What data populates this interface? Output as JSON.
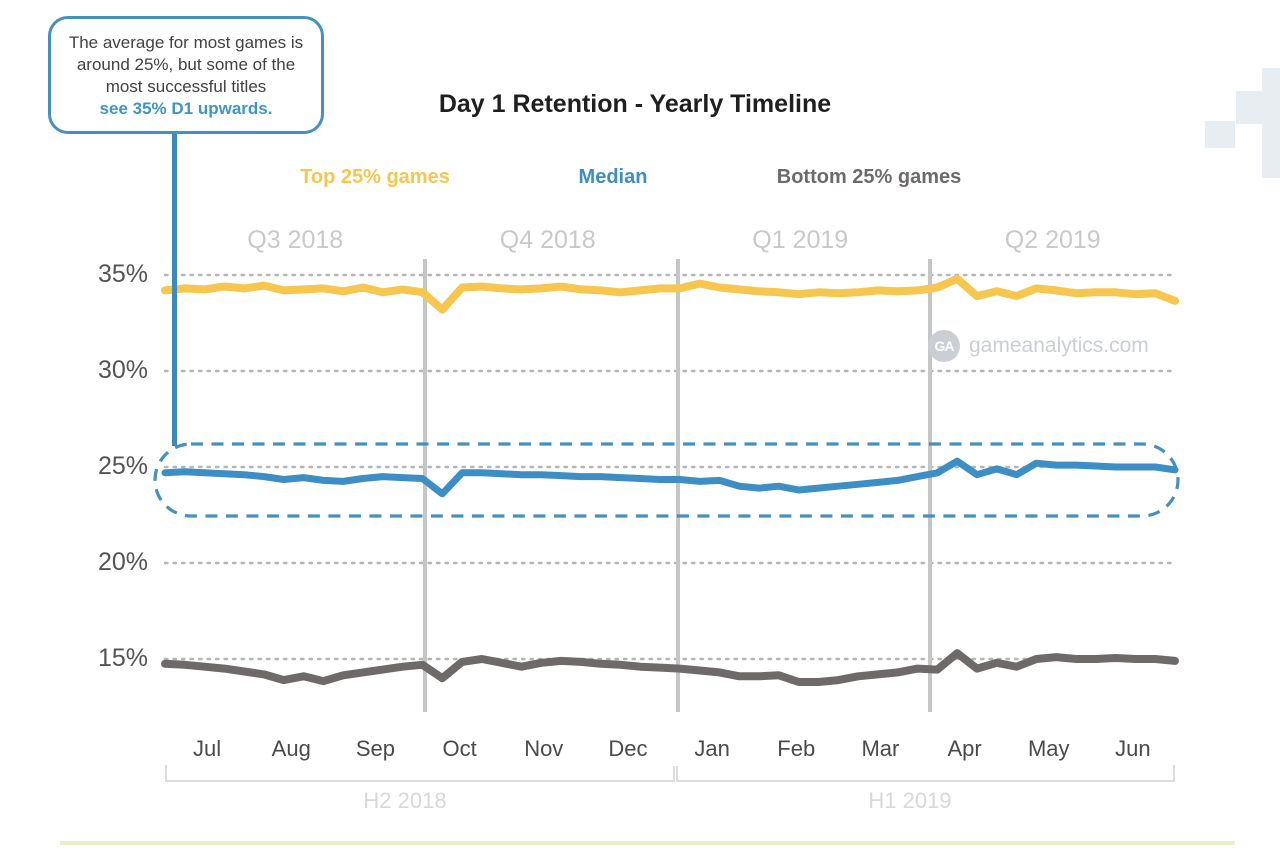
{
  "callout": {
    "text": "The average for most games is around 25%, but some of the most successful titles",
    "highlight": "see 35% D1 upwards."
  },
  "header": {
    "title": "Day 1 Retention - Yearly Timeline"
  },
  "watermark": {
    "logo_text": "GA",
    "site": "gameanalytics.com"
  },
  "colors": {
    "accent_blue": "#3E88BB",
    "top25_yellow": "#F6C64F",
    "median_blue": "#3D8EC5",
    "bottom25_gray": "#6E6A6A",
    "grid_gray": "#B5B5B5",
    "divider_gray": "#C6C6C6",
    "bottom_rule_yellow": "#F0ECC8"
  },
  "chart_data": {
    "type": "line",
    "title": "Day 1 Retention - Yearly Timeline",
    "x_unit": "weekly points, Jul 2018 - Jun 2019",
    "months": [
      "Jul",
      "Aug",
      "Sep",
      "Oct",
      "Nov",
      "Dec",
      "Jan",
      "Feb",
      "Mar",
      "Apr",
      "May",
      "Jun"
    ],
    "quarters": [
      "Q3 2018",
      "Q4 2018",
      "Q1 2019",
      "Q2 2019"
    ],
    "halves": [
      "H2 2018",
      "H1 2019"
    ],
    "yticks": [
      35,
      30,
      25,
      20,
      15
    ],
    "ytick_suffix": "%",
    "ylim": [
      12.5,
      36.5
    ],
    "grid": "dotted horizontal lines at each ytick",
    "legend_position": "top",
    "series": [
      {
        "name": "Top 25% games",
        "color": "#F6C64F",
        "width": 8,
        "values": [
          34.2,
          34.3,
          34.25,
          34.4,
          34.3,
          34.45,
          34.2,
          34.25,
          34.3,
          34.15,
          34.35,
          34.1,
          34.25,
          34.1,
          33.2,
          34.35,
          34.4,
          34.3,
          34.25,
          34.3,
          34.4,
          34.25,
          34.2,
          34.1,
          34.2,
          34.3,
          34.3,
          34.55,
          34.35,
          34.25,
          34.15,
          34.1,
          34.0,
          34.1,
          34.05,
          34.1,
          34.2,
          34.15,
          34.2,
          34.35,
          34.8,
          33.9,
          34.15,
          33.9,
          34.3,
          34.2,
          34.05,
          34.1,
          34.1,
          34.0,
          34.05,
          33.65
        ]
      },
      {
        "name": "Median",
        "color": "#3D8EC5",
        "width": 7,
        "values": [
          24.7,
          24.75,
          24.7,
          24.65,
          24.6,
          24.5,
          24.35,
          24.45,
          24.3,
          24.25,
          24.4,
          24.5,
          24.45,
          24.4,
          23.6,
          24.7,
          24.7,
          24.65,
          24.6,
          24.6,
          24.55,
          24.5,
          24.5,
          24.45,
          24.4,
          24.35,
          24.35,
          24.25,
          24.3,
          24.0,
          23.9,
          24.0,
          23.8,
          23.9,
          24.0,
          24.1,
          24.2,
          24.3,
          24.5,
          24.7,
          25.3,
          24.6,
          24.9,
          24.6,
          25.2,
          25.1,
          25.1,
          25.05,
          25.0,
          25.0,
          25.0,
          24.85
        ]
      },
      {
        "name": "Bottom 25% games",
        "color": "#6E6A6A",
        "width": 8,
        "values": [
          14.75,
          14.7,
          14.6,
          14.5,
          14.35,
          14.2,
          13.9,
          14.1,
          13.85,
          14.15,
          14.3,
          14.45,
          14.6,
          14.7,
          14.0,
          14.85,
          15.0,
          14.8,
          14.6,
          14.8,
          14.9,
          14.85,
          14.75,
          14.7,
          14.6,
          14.55,
          14.5,
          14.4,
          14.3,
          14.1,
          14.1,
          14.15,
          13.8,
          13.8,
          13.9,
          14.1,
          14.2,
          14.3,
          14.5,
          14.45,
          15.3,
          14.5,
          14.8,
          14.6,
          15.0,
          15.1,
          15.0,
          15.0,
          15.05,
          15.0,
          15.0,
          14.9
        ]
      }
    ],
    "annotations": {
      "median_highlight": "dashed rounded outline drawn around the Median line across the full year",
      "callout_points_to": "Median line"
    }
  }
}
